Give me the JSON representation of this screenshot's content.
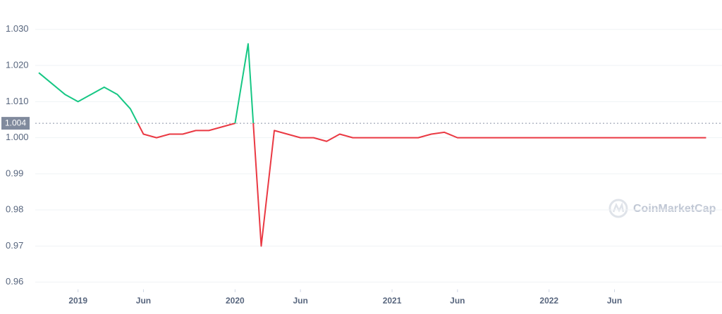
{
  "chart_data": {
    "type": "line",
    "x": [
      "2018-10",
      "2018-11",
      "2018-12",
      "2019-01",
      "2019-02",
      "2019-03",
      "2019-04",
      "2019-05",
      "2019-06",
      "2019-07",
      "2019-08",
      "2019-09",
      "2019-10",
      "2019-11",
      "2019-12",
      "2020-01",
      "2020-02",
      "2020-03",
      "2020-04",
      "2020-05",
      "2020-06",
      "2020-07",
      "2020-08",
      "2020-09",
      "2020-10",
      "2020-11",
      "2020-12",
      "2021-01",
      "2021-02",
      "2021-03",
      "2021-04",
      "2021-05",
      "2021-06",
      "2021-07",
      "2021-08",
      "2021-09",
      "2021-10",
      "2021-11",
      "2021-12",
      "2022-01",
      "2022-02",
      "2022-03",
      "2022-04",
      "2022-05",
      "2022-06",
      "2022-07",
      "2022-08",
      "2022-09",
      "2022-10",
      "2022-11",
      "2022-12",
      "2023-01"
    ],
    "values": [
      1.018,
      1.015,
      1.012,
      1.01,
      1.012,
      1.014,
      1.012,
      1.008,
      1.001,
      1.0,
      1.001,
      1.001,
      1.002,
      1.002,
      1.003,
      1.004,
      1.026,
      0.97,
      1.002,
      1.001,
      1.0,
      1.0,
      0.999,
      1.001,
      1.0,
      1.0,
      1.0,
      1.0,
      1.0,
      1.0,
      1.001,
      1.0015,
      1.0,
      1.0,
      1.0,
      1.0,
      1.0,
      1.0,
      1.0,
      1.0,
      1.0,
      1.0,
      1.0,
      1.0,
      1.0,
      1.0,
      1.0,
      1.0,
      1.0,
      1.0,
      1.0,
      1.0
    ],
    "baseline": 1.004,
    "color_above": "#16c784",
    "color_below": "#ea3943",
    "xlim": [
      "2018-10",
      "2023-02"
    ],
    "xticks": [
      {
        "value": "2019-01",
        "label": "2019"
      },
      {
        "value": "2019-06",
        "label": "Jun"
      },
      {
        "value": "2020-01",
        "label": "2020"
      },
      {
        "value": "2020-06",
        "label": "Jun"
      },
      {
        "value": "2021-01",
        "label": "2021"
      },
      {
        "value": "2021-06",
        "label": "Jun"
      },
      {
        "value": "2022-01",
        "label": "2022"
      },
      {
        "value": "2022-06",
        "label": "Jun"
      }
    ],
    "ylim": [
      0.958,
      1.036
    ],
    "yticks": [
      0.96,
      0.97,
      0.98,
      0.99,
      {
        "value": 1.0,
        "label": "1.000"
      },
      {
        "value": 1.01,
        "label": "1.010"
      },
      {
        "value": 1.02,
        "label": "1.020"
      },
      {
        "value": 1.03,
        "label": "1.030"
      }
    ],
    "grid": true,
    "watermark": "CoinMarketCap"
  }
}
